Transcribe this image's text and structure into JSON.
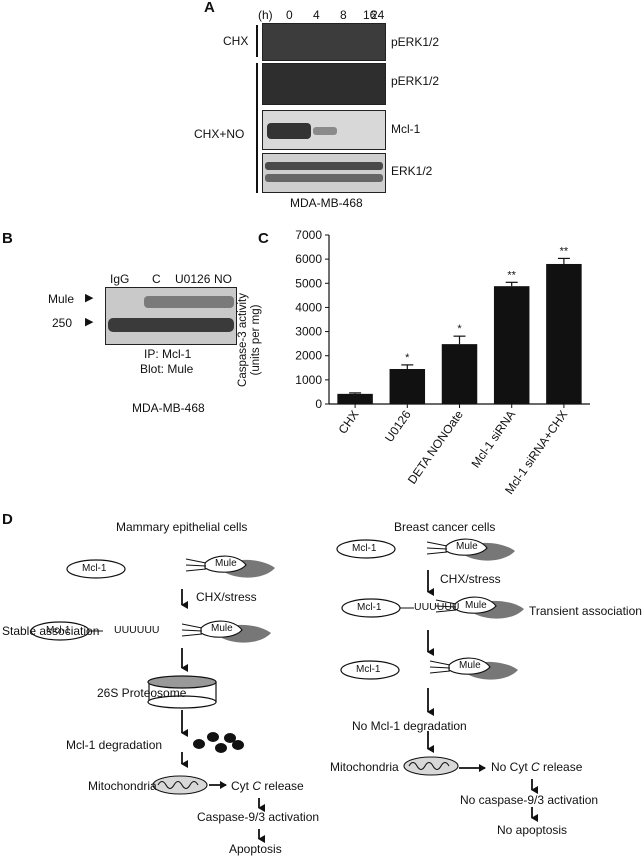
{
  "panel_a": {
    "label": "A",
    "time_unit": "(h)",
    "timepoints": [
      "0",
      "4",
      "8",
      "16",
      "24"
    ],
    "condition_chx": "CHX",
    "condition_cho_no": "CHX+NO",
    "blots": [
      "pERK1/2",
      "pERK1/2",
      "Mcl-1",
      "ERK1/2"
    ],
    "cell_line": "MDA-MB-468"
  },
  "panel_b": {
    "label": "B",
    "lanes": [
      "IgG",
      "C",
      "U0126",
      "NO"
    ],
    "marker_mule": "Mule",
    "marker_250": "250",
    "ip_text": "IP: Mcl-1",
    "blot_text": "Blot: Mule",
    "cell_line": "MDA-MB-468"
  },
  "chart_data": {
    "type": "bar",
    "label": "C",
    "categories": [
      "CHX",
      "U0126",
      "DETA NONOate",
      "Mcl-1 siRNA",
      "Mcl-1 siRNA+CHX"
    ],
    "values": [
      420,
      1450,
      2480,
      4880,
      5800
    ],
    "errors": [
      40,
      170,
      330,
      160,
      230
    ],
    "significance": [
      "",
      "*",
      "*",
      "**",
      "**"
    ],
    "ylabel_line1": "Caspase-3 activity",
    "ylabel_line2": "(units per mg)",
    "yticks": [
      "0",
      "1000",
      "2000",
      "3000",
      "4000",
      "5000",
      "6000",
      "7000"
    ],
    "ylim": [
      0,
      7000
    ],
    "grid": false,
    "bar_color": "#111111"
  },
  "panel_d": {
    "label": "D",
    "left_title": "Mammary epithelial cells",
    "right_title": "Breast cancer cells",
    "mcl1": "Mcl-1",
    "mule": "Mule",
    "ub_chain": "UUUUUU",
    "cx_stress": "CHX/stress",
    "stable_assoc": "Stable association",
    "transient_assoc": "Transient association",
    "proteosome": "26S Proteosome",
    "mcl1_degradation": "Mcl-1 degradation",
    "no_mcl1_degradation": "No Mcl-1 degradation",
    "mitochondria": "Mitochondria",
    "cyt_release_pre": "Cyt",
    "cyt_c": "C",
    "release_word": "release",
    "no_cyt_pre": "No Cyt",
    "caspase_activation": "Caspase-9/3 activation",
    "no_caspase_activation": "No caspase-9/3 activation",
    "apoptosis": "Apoptosis",
    "no_apoptosis": "No apoptosis"
  }
}
